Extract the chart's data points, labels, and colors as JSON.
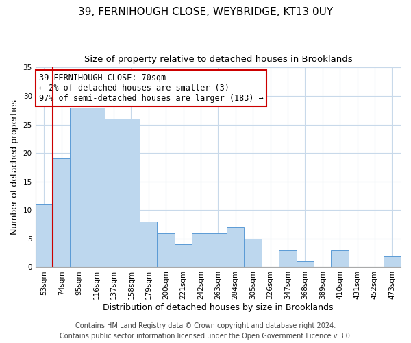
{
  "title": "39, FERNIHOUGH CLOSE, WEYBRIDGE, KT13 0UY",
  "subtitle": "Size of property relative to detached houses in Brooklands",
  "xlabel": "Distribution of detached houses by size in Brooklands",
  "ylabel": "Number of detached properties",
  "footer_line1": "Contains HM Land Registry data © Crown copyright and database right 2024.",
  "footer_line2": "Contains public sector information licensed under the Open Government Licence v 3.0.",
  "bar_labels": [
    "53sqm",
    "74sqm",
    "95sqm",
    "116sqm",
    "137sqm",
    "158sqm",
    "179sqm",
    "200sqm",
    "221sqm",
    "242sqm",
    "263sqm",
    "284sqm",
    "305sqm",
    "326sqm",
    "347sqm",
    "368sqm",
    "389sqm",
    "410sqm",
    "431sqm",
    "452sqm",
    "473sqm"
  ],
  "bar_values": [
    11,
    19,
    28,
    28,
    26,
    26,
    8,
    6,
    4,
    6,
    6,
    7,
    5,
    0,
    3,
    1,
    0,
    3,
    0,
    0,
    2
  ],
  "bar_color": "#bdd7ee",
  "bar_edge_color": "#5b9bd5",
  "highlight_bar_color": "#cc0000",
  "ylim": [
    0,
    35
  ],
  "yticks": [
    0,
    5,
    10,
    15,
    20,
    25,
    30,
    35
  ],
  "annotation_title": "39 FERNIHOUGH CLOSE: 70sqm",
  "annotation_line1": "← 2% of detached houses are smaller (3)",
  "annotation_line2": "97% of semi-detached houses are larger (183) →",
  "annotation_box_color": "#ffffff",
  "annotation_box_edge_color": "#cc0000",
  "background_color": "#ffffff",
  "grid_color": "#c8d9ea",
  "title_fontsize": 11,
  "subtitle_fontsize": 9.5,
  "axis_label_fontsize": 9,
  "tick_fontsize": 7.5,
  "annotation_fontsize": 8.5,
  "footer_fontsize": 7
}
